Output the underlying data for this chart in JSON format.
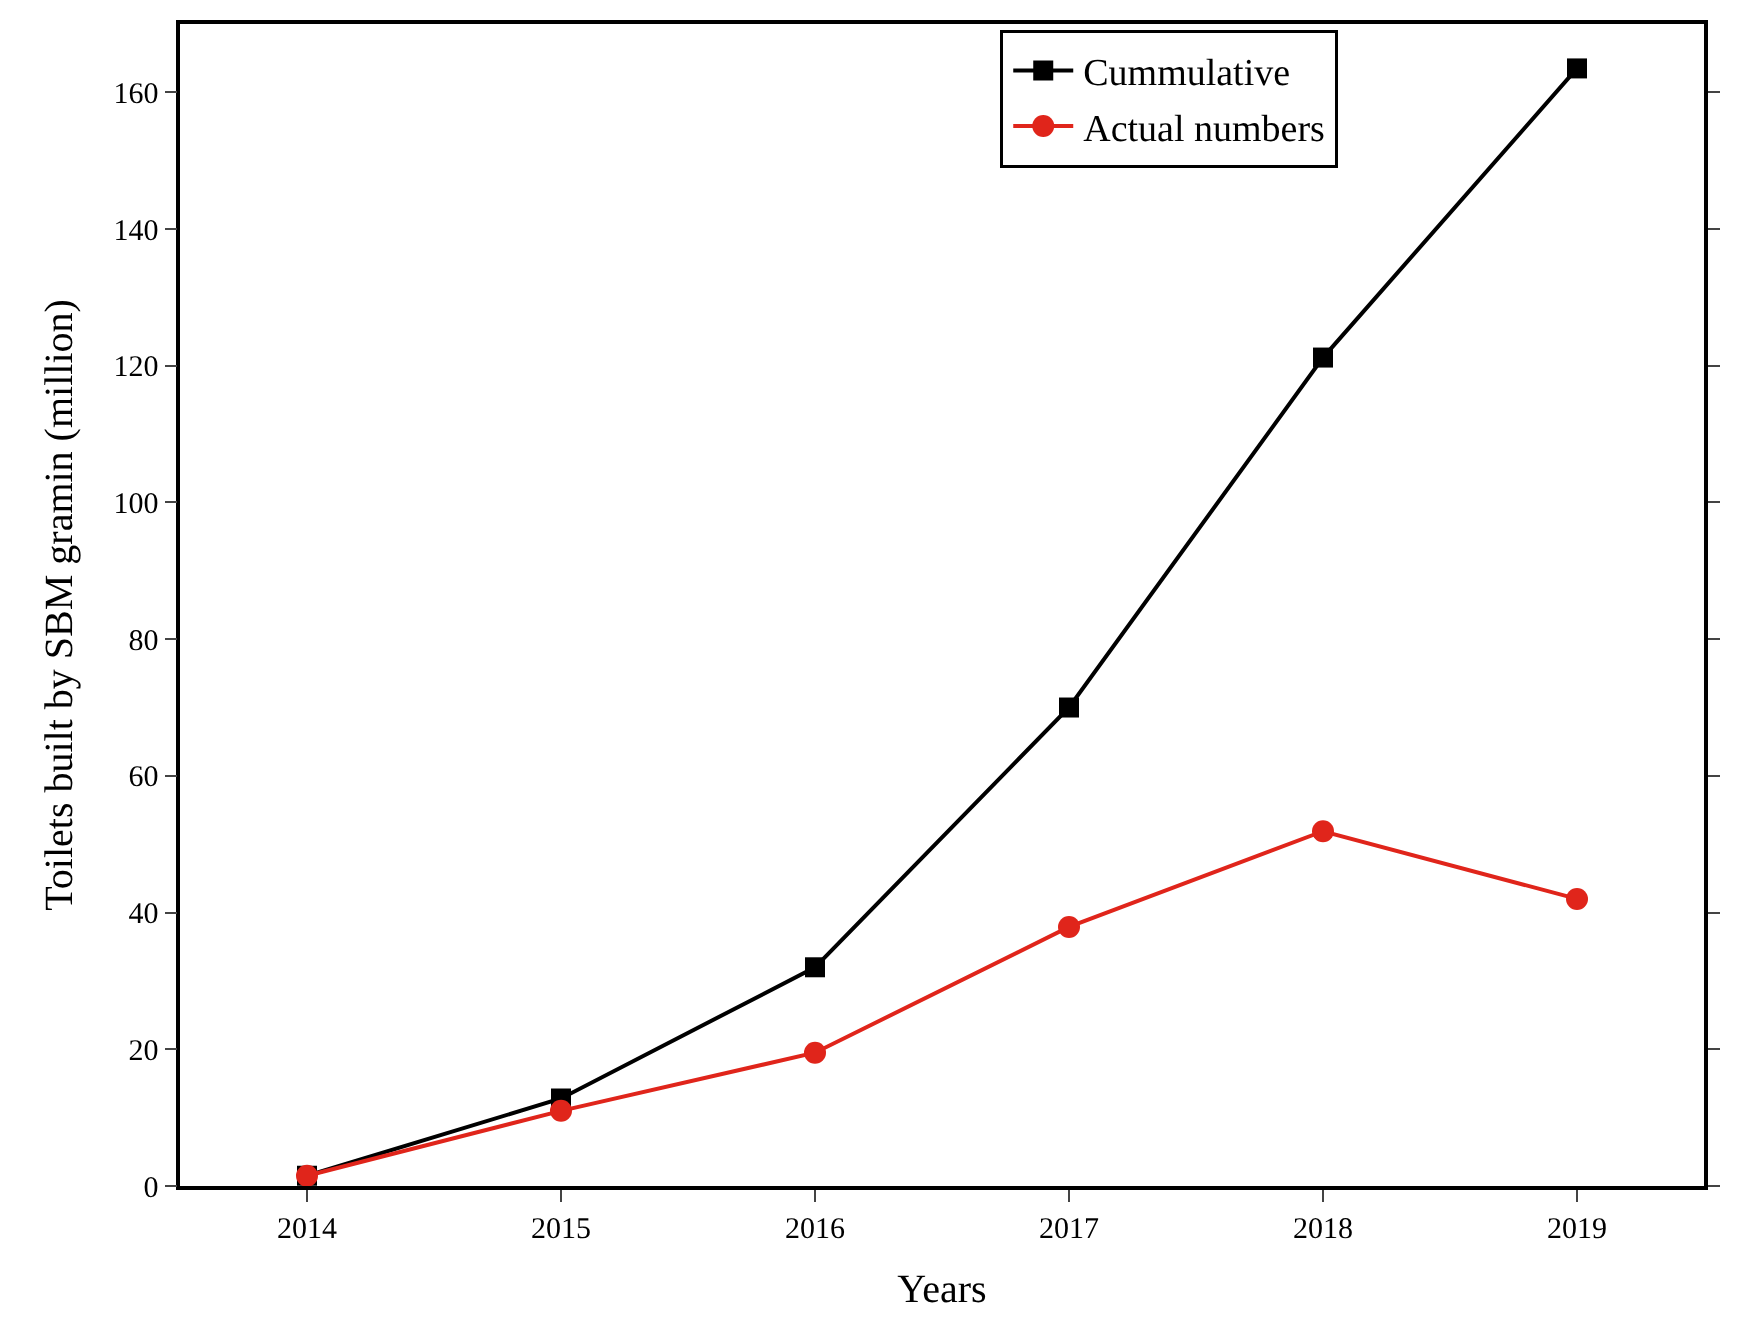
{
  "chart_data": {
    "type": "line",
    "xlabel": "Years",
    "ylabel": "Toilets built by SBM gramin (million)",
    "x": [
      2014,
      2015,
      2016,
      2017,
      2018,
      2019
    ],
    "xlim": [
      2013.5,
      2019.5
    ],
    "xticks": [
      2014,
      2015,
      2016,
      2017,
      2018,
      2019
    ],
    "ylim": [
      0,
      170
    ],
    "yticks": [
      0,
      20,
      40,
      60,
      80,
      100,
      120,
      140,
      160
    ],
    "legend": "top right",
    "line_style": "solid",
    "series": [
      {
        "name": "Cummulative",
        "color": "#000000",
        "marker": "square",
        "values": [
          1.5,
          12.8,
          32,
          70,
          121.2,
          163.5
        ]
      },
      {
        "name": "Actual numbers",
        "color": "#e0251b",
        "marker": "circle",
        "values": [
          1.5,
          11,
          19.5,
          37.9,
          51.9,
          42
        ]
      }
    ]
  }
}
